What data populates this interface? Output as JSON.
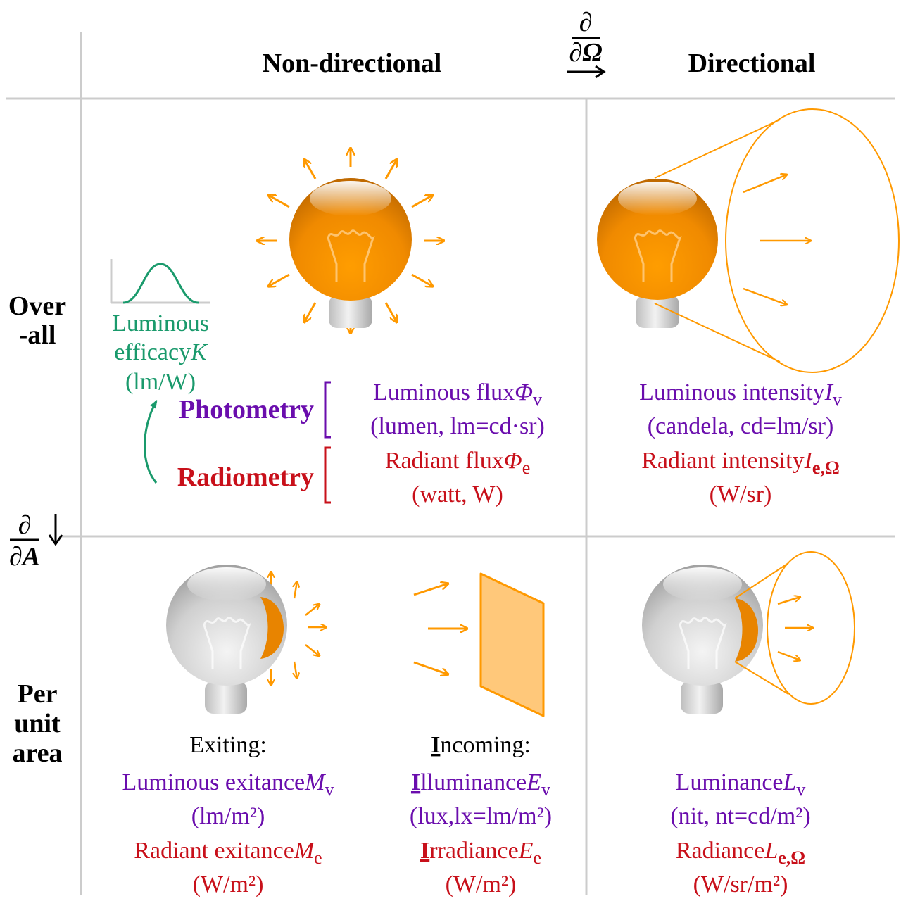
{
  "colors": {
    "photometry": "#6a0dad",
    "radiometry": "#c8101a",
    "efficacy": "#1a9a6c",
    "light": "#ff9900",
    "grid": "#cccccc"
  },
  "header": {
    "non_directional": "Non-directional",
    "directional": "Directional",
    "partial": "∂",
    "omega": "∂Ω"
  },
  "rows": {
    "overall_1": "Over",
    "overall_2": "-all",
    "per_1": "Per",
    "per_2": "unit",
    "per_3": "area",
    "partial": "∂",
    "area": "∂A"
  },
  "legend": {
    "efficacy_1": "Luminous",
    "efficacy_2": "efficacy",
    "efficacy_sym": "K",
    "efficacy_unit": "(lm/W)",
    "photometry": "Photometry",
    "radiometry": "Radiometry"
  },
  "cells": {
    "flux": {
      "lum": "Luminous flux",
      "lum_sym": "Φ",
      "lum_sub": "v",
      "lum_unit": "(lumen, lm=cd·sr)",
      "rad": "Radiant flux",
      "rad_sym": "Φ",
      "rad_sub": "e",
      "rad_unit": "(watt, W)"
    },
    "intensity": {
      "lum": "Luminous intensity",
      "lum_sym": "I",
      "lum_sub": "v",
      "lum_unit": "(candela, cd=lm/sr)",
      "rad": "Radiant intensity",
      "rad_sym": "I",
      "rad_sub": "e,Ω",
      "rad_unit": "(W/sr)"
    },
    "exitance": {
      "head": "Exiting:",
      "lum": "Luminous exitance",
      "lum_sym": "M",
      "lum_sub": "v",
      "lum_unit": "(lm/m²)",
      "rad": "Radiant exitance",
      "rad_sym": "M",
      "rad_sub": "e",
      "rad_unit": "(W/m²)"
    },
    "illuminance": {
      "head_first": "I",
      "head_rest": "ncoming:",
      "lum_first": "I",
      "lum": "lluminance",
      "lum_sym": "E",
      "lum_sub": "v",
      "lum_unit": "(lux,lx=lm/m²)",
      "rad_first": "I",
      "rad": "rradiance",
      "rad_sym": "E",
      "rad_sub": "e",
      "rad_unit": "(W/m²)"
    },
    "luminance": {
      "lum": "Luminance",
      "lum_sym": "L",
      "lum_sub": "v",
      "lum_unit": "(nit, nt=cd/m²)",
      "rad": "Radiance",
      "rad_sym": "L",
      "rad_sub": "e,Ω",
      "rad_unit": "(W/sr/m²)"
    }
  }
}
